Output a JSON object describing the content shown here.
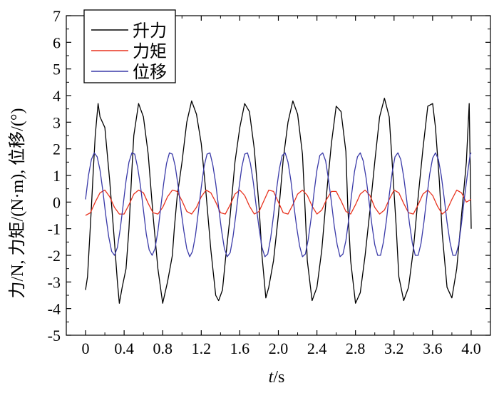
{
  "chart_data": {
    "type": "line",
    "xlabel_italic": "t",
    "xlabel_unit": "/s",
    "ylabel": "力/N, 力矩/(N·m), 位移/(°)",
    "xlim": [
      -0.2,
      4.2
    ],
    "ylim": [
      -5,
      7
    ],
    "x_ticks": [
      0,
      0.4,
      0.8,
      1.2,
      1.6,
      2.0,
      2.4,
      2.8,
      3.2,
      3.6,
      4.0
    ],
    "x_tick_labels": [
      "0",
      "0.4",
      "0.8",
      "1.2",
      "1.6",
      "2.0",
      "2.4",
      "2.8",
      "3.2",
      "3.6",
      "4.0"
    ],
    "y_ticks": [
      -5,
      -4,
      -3,
      -2,
      -1,
      0,
      1,
      2,
      3,
      4,
      5,
      6,
      7
    ],
    "y_tick_labels": [
      "-5",
      "-4",
      "-3",
      "-2",
      "-1",
      "0",
      "1",
      "2",
      "3",
      "4",
      "5",
      "6",
      "7"
    ],
    "legend_position": "top-left",
    "grid": false,
    "series": [
      {
        "name": "升力",
        "color": "#000000",
        "x": [
          0.0,
          0.02,
          0.04,
          0.06,
          0.08,
          0.1,
          0.13,
          0.15,
          0.2,
          0.25,
          0.3,
          0.33,
          0.35,
          0.38,
          0.42,
          0.45,
          0.48,
          0.5,
          0.55,
          0.6,
          0.65,
          0.7,
          0.75,
          0.8,
          0.85,
          0.9,
          0.92,
          0.95,
          1.0,
          1.05,
          1.1,
          1.15,
          1.2,
          1.25,
          1.3,
          1.35,
          1.38,
          1.42,
          1.45,
          1.5,
          1.55,
          1.6,
          1.65,
          1.7,
          1.75,
          1.8,
          1.83,
          1.87,
          1.9,
          1.95,
          2.0,
          2.05,
          2.1,
          2.15,
          2.2,
          2.25,
          2.28,
          2.3,
          2.35,
          2.4,
          2.45,
          2.5,
          2.55,
          2.6,
          2.65,
          2.7,
          2.72,
          2.75,
          2.8,
          2.85,
          2.9,
          2.95,
          3.0,
          3.05,
          3.1,
          3.15,
          3.18,
          3.22,
          3.25,
          3.3,
          3.35,
          3.4,
          3.45,
          3.5,
          3.55,
          3.6,
          3.63,
          3.67,
          3.7,
          3.75,
          3.8,
          3.85,
          3.9,
          3.95,
          3.98,
          4.0
        ],
        "y": [
          -3.3,
          -2.8,
          -1.5,
          -0.2,
          1.2,
          2.5,
          3.7,
          3.2,
          2.8,
          0.8,
          -1.5,
          -3.0,
          -3.8,
          -3.2,
          -2.5,
          -1.0,
          1.2,
          2.5,
          3.7,
          3.2,
          1.8,
          -0.5,
          -2.5,
          -3.8,
          -3.0,
          -2.0,
          -1.0,
          0.2,
          1.5,
          3.0,
          3.8,
          3.3,
          2.2,
          0.3,
          -1.8,
          -3.5,
          -3.7,
          -3.3,
          -2.2,
          -0.5,
          1.5,
          2.8,
          3.7,
          3.4,
          2.0,
          -0.2,
          -2.0,
          -3.6,
          -3.2,
          -2.2,
          -0.5,
          1.6,
          3.0,
          3.8,
          3.3,
          1.8,
          -0.5,
          -2.2,
          -3.7,
          -3.2,
          -1.8,
          0.3,
          2.2,
          3.6,
          3.4,
          1.9,
          -0.2,
          -2.2,
          -3.8,
          -3.4,
          -2.0,
          -0.3,
          1.5,
          3.2,
          3.9,
          3.2,
          1.5,
          -0.8,
          -2.8,
          -3.7,
          -3.2,
          -1.8,
          0.2,
          2.0,
          3.6,
          3.7,
          2.8,
          0.8,
          -1.2,
          -3.2,
          -3.6,
          -2.5,
          -0.5,
          1.5,
          3.7,
          -1.0
        ]
      },
      {
        "name": "力矩",
        "color": "#e8321e",
        "x": [
          0.0,
          0.05,
          0.1,
          0.15,
          0.2,
          0.25,
          0.3,
          0.35,
          0.4,
          0.45,
          0.5,
          0.55,
          0.6,
          0.65,
          0.7,
          0.75,
          0.8,
          0.85,
          0.9,
          0.95,
          1.0,
          1.05,
          1.1,
          1.15,
          1.2,
          1.25,
          1.3,
          1.35,
          1.4,
          1.45,
          1.5,
          1.55,
          1.6,
          1.65,
          1.7,
          1.75,
          1.8,
          1.85,
          1.9,
          1.95,
          2.0,
          2.05,
          2.1,
          2.15,
          2.2,
          2.25,
          2.3,
          2.35,
          2.4,
          2.45,
          2.5,
          2.55,
          2.6,
          2.65,
          2.7,
          2.75,
          2.8,
          2.85,
          2.9,
          2.95,
          3.0,
          3.05,
          3.1,
          3.15,
          3.2,
          3.25,
          3.3,
          3.35,
          3.4,
          3.45,
          3.5,
          3.55,
          3.6,
          3.65,
          3.7,
          3.75,
          3.8,
          3.85,
          3.9,
          3.95,
          4.0
        ],
        "y": [
          -0.5,
          -0.4,
          0.0,
          0.35,
          0.45,
          0.2,
          -0.2,
          -0.45,
          -0.45,
          -0.1,
          0.3,
          0.45,
          0.35,
          -0.05,
          -0.4,
          -0.45,
          -0.2,
          0.2,
          0.45,
          0.4,
          0.05,
          -0.35,
          -0.45,
          -0.2,
          0.2,
          0.45,
          0.35,
          0.0,
          -0.4,
          -0.45,
          -0.1,
          0.3,
          0.45,
          0.25,
          -0.15,
          -0.45,
          -0.35,
          0.05,
          0.45,
          0.4,
          0.0,
          -0.4,
          -0.45,
          -0.1,
          0.3,
          0.45,
          0.25,
          -0.15,
          -0.45,
          -0.3,
          0.1,
          0.4,
          0.4,
          0.05,
          -0.35,
          -0.45,
          -0.1,
          0.3,
          0.45,
          0.25,
          -0.2,
          -0.45,
          -0.3,
          0.1,
          0.45,
          0.35,
          -0.05,
          -0.4,
          -0.45,
          -0.1,
          0.3,
          0.45,
          0.25,
          -0.15,
          -0.45,
          -0.3,
          0.1,
          0.45,
          0.35,
          0.0,
          0.1
        ]
      },
      {
        "name": "位移",
        "color": "#3a3aa8",
        "x": [
          0.0,
          0.03,
          0.06,
          0.09,
          0.12,
          0.15,
          0.18,
          0.21,
          0.24,
          0.27,
          0.3,
          0.33,
          0.36,
          0.39,
          0.42,
          0.45,
          0.48,
          0.51,
          0.54,
          0.57,
          0.6,
          0.63,
          0.66,
          0.69,
          0.72,
          0.75,
          0.78,
          0.81,
          0.84,
          0.87,
          0.9,
          0.93,
          0.96,
          0.99,
          1.02,
          1.05,
          1.08,
          1.11,
          1.14,
          1.17,
          1.2,
          1.23,
          1.26,
          1.29,
          1.32,
          1.35,
          1.38,
          1.41,
          1.44,
          1.47,
          1.5,
          1.53,
          1.56,
          1.59,
          1.62,
          1.65,
          1.68,
          1.71,
          1.74,
          1.77,
          1.8,
          1.83,
          1.86,
          1.89,
          1.92,
          1.95,
          1.98,
          2.01,
          2.04,
          2.07,
          2.1,
          2.13,
          2.16,
          2.19,
          2.22,
          2.25,
          2.28,
          2.31,
          2.34,
          2.37,
          2.4,
          2.43,
          2.46,
          2.49,
          2.52,
          2.55,
          2.58,
          2.61,
          2.64,
          2.67,
          2.7,
          2.73,
          2.76,
          2.79,
          2.82,
          2.85,
          2.88,
          2.91,
          2.94,
          2.97,
          3.0,
          3.03,
          3.06,
          3.09,
          3.12,
          3.15,
          3.18,
          3.21,
          3.24,
          3.27,
          3.3,
          3.33,
          3.36,
          3.39,
          3.42,
          3.45,
          3.48,
          3.51,
          3.54,
          3.57,
          3.6,
          3.63,
          3.66,
          3.69,
          3.72,
          3.75,
          3.78,
          3.81,
          3.84,
          3.87,
          3.9,
          3.93,
          3.96,
          3.99,
          4.0
        ],
        "y": [
          0.1,
          1.0,
          1.6,
          1.85,
          1.7,
          1.2,
          0.4,
          -0.5,
          -1.3,
          -1.85,
          -2.0,
          -1.7,
          -1.0,
          -0.1,
          0.8,
          1.5,
          1.85,
          1.8,
          1.3,
          0.6,
          -0.3,
          -1.2,
          -1.8,
          -2.0,
          -1.75,
          -1.1,
          -0.2,
          0.7,
          1.45,
          1.85,
          1.8,
          1.35,
          0.6,
          -0.3,
          -1.1,
          -1.75,
          -2.05,
          -1.85,
          -1.25,
          -0.35,
          0.55,
          1.35,
          1.8,
          1.85,
          1.4,
          0.7,
          -0.2,
          -1.05,
          -1.75,
          -2.05,
          -1.9,
          -1.3,
          -0.45,
          0.5,
          1.3,
          1.8,
          1.85,
          1.45,
          0.75,
          -0.15,
          -1.0,
          -1.7,
          -2.05,
          -1.95,
          -1.35,
          -0.5,
          0.45,
          1.25,
          1.75,
          1.85,
          1.5,
          0.8,
          -0.1,
          -0.95,
          -1.65,
          -2.05,
          -1.95,
          -1.4,
          -0.6,
          0.35,
          1.2,
          1.75,
          1.85,
          1.55,
          0.85,
          0.0,
          -0.9,
          -1.6,
          -2.05,
          -1.95,
          -1.45,
          -0.65,
          0.3,
          1.15,
          1.7,
          1.85,
          1.55,
          0.9,
          0.05,
          -0.85,
          -1.6,
          -2.0,
          -2.0,
          -1.5,
          -0.7,
          0.25,
          1.1,
          1.7,
          1.85,
          1.6,
          0.95,
          0.1,
          -0.8,
          -1.55,
          -2.0,
          -2.0,
          -1.55,
          -0.75,
          0.2,
          1.05,
          1.65,
          1.85,
          1.6,
          1.0,
          0.15,
          -0.75,
          -1.5,
          -2.0,
          -2.0,
          -1.6,
          -0.8,
          0.15,
          1.0,
          1.8,
          1.85
        ]
      }
    ]
  }
}
